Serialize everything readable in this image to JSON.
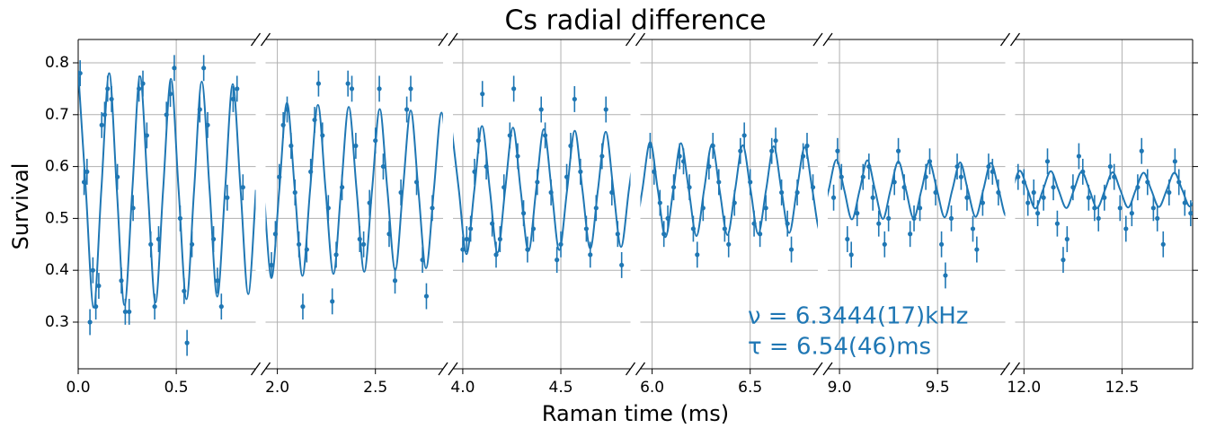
{
  "chart_data": {
    "type": "scatter",
    "title": "Cs radial difference",
    "xlabel": "Raman time (ms)",
    "ylabel": "Survival",
    "color": "#1f77b4",
    "grid": true,
    "ylim": [
      0.21,
      0.845
    ],
    "yticks": [
      0.3,
      0.4,
      0.5,
      0.6,
      0.7,
      0.8
    ],
    "error": 0.025,
    "annotations": [
      "ν = 6.3444(17)kHz",
      "τ = 6.54(46)ms"
    ],
    "panels": [
      {
        "xlim": [
          0,
          0.905
        ],
        "xticks": [
          {
            "value": 0,
            "label": "0.0"
          },
          0.5
        ],
        "x": [
          0.01,
          0.03,
          0.045,
          0.06,
          0.075,
          0.09,
          0.105,
          0.12,
          0.135,
          0.15,
          0.17,
          0.2,
          0.22,
          0.24,
          0.26,
          0.28,
          0.31,
          0.33,
          0.35,
          0.37,
          0.39,
          0.41,
          0.45,
          0.47,
          0.49,
          0.52,
          0.54,
          0.555,
          0.58,
          0.62,
          0.64,
          0.66,
          0.69,
          0.71,
          0.73,
          0.76,
          0.79,
          0.81,
          0.84
        ],
        "values": [
          0.78,
          0.57,
          0.59,
          0.3,
          0.4,
          0.33,
          0.37,
          0.68,
          0.7,
          0.75,
          0.73,
          0.58,
          0.38,
          0.32,
          0.32,
          0.52,
          0.75,
          0.76,
          0.66,
          0.45,
          0.33,
          0.46,
          0.7,
          0.74,
          0.79,
          0.5,
          0.36,
          0.26,
          0.45,
          0.71,
          0.79,
          0.68,
          0.46,
          0.38,
          0.33,
          0.54,
          0.73,
          0.75,
          0.56
        ],
        "fit_x": [
          0,
          0.039,
          0.079,
          0.118,
          0.158,
          0.197,
          0.236,
          0.276,
          0.315,
          0.355,
          0.394,
          0.433,
          0.473,
          0.512,
          0.552,
          0.591,
          0.63,
          0.67,
          0.709,
          0.749,
          0.788,
          0.828,
          0.867,
          0.906
        ],
        "fit_y": [
          0.785,
          0.555,
          0.328,
          0.555,
          0.78,
          0.555,
          0.333,
          0.555,
          0.774,
          0.555,
          0.338,
          0.555,
          0.769,
          0.555,
          0.344,
          0.555,
          0.764,
          0.555,
          0.349,
          0.555,
          0.759,
          0.555,
          0.354,
          0.555
        ]
      },
      {
        "xlim": [
          1.94,
          2.845
        ],
        "xticks": [
          {
            "value": 2,
            "label": "2.0"
          },
          2.5
        ],
        "x": [
          1.97,
          1.99,
          2.01,
          2.03,
          2.05,
          2.07,
          2.09,
          2.11,
          2.13,
          2.15,
          2.17,
          2.19,
          2.21,
          2.23,
          2.26,
          2.28,
          2.3,
          2.33,
          2.36,
          2.38,
          2.4,
          2.42,
          2.44,
          2.47,
          2.5,
          2.52,
          2.54,
          2.57,
          2.6,
          2.63,
          2.66,
          2.68,
          2.71,
          2.74,
          2.76,
          2.79
        ],
        "values": [
          0.41,
          0.47,
          0.58,
          0.68,
          0.71,
          0.64,
          0.55,
          0.45,
          0.33,
          0.44,
          0.59,
          0.69,
          0.76,
          0.66,
          0.52,
          0.34,
          0.43,
          0.56,
          0.76,
          0.75,
          0.64,
          0.46,
          0.45,
          0.53,
          0.65,
          0.75,
          0.6,
          0.47,
          0.38,
          0.55,
          0.71,
          0.75,
          0.57,
          0.42,
          0.35,
          0.52
        ],
        "fit_x": [
          1.931,
          1.97,
          2.01,
          2.049,
          2.089,
          2.128,
          2.167,
          2.207,
          2.246,
          2.286,
          2.325,
          2.364,
          2.404,
          2.443,
          2.483,
          2.522,
          2.561,
          2.601,
          2.64,
          2.68,
          2.719,
          2.758,
          2.798,
          2.837,
          2.877
        ],
        "fit_y": [
          0.555,
          0.385,
          0.555,
          0.723,
          0.555,
          0.389,
          0.555,
          0.719,
          0.555,
          0.393,
          0.555,
          0.715,
          0.555,
          0.397,
          0.555,
          0.711,
          0.555,
          0.4,
          0.555,
          0.708,
          0.555,
          0.404,
          0.555,
          0.704,
          0.555
        ]
      },
      {
        "xlim": [
          3.95,
          4.855
        ],
        "xticks": [
          {
            "value": 4,
            "label": "4.0"
          },
          4.5
        ],
        "x": [
          4.0,
          4.02,
          4.04,
          4.06,
          4.08,
          4.1,
          4.12,
          4.15,
          4.17,
          4.19,
          4.21,
          4.24,
          4.26,
          4.28,
          4.31,
          4.33,
          4.36,
          4.38,
          4.4,
          4.42,
          4.45,
          4.48,
          4.5,
          4.53,
          4.55,
          4.57,
          4.6,
          4.63,
          4.65,
          4.68,
          4.71,
          4.73,
          4.76,
          4.79,
          4.81
        ],
        "values": [
          0.44,
          0.46,
          0.48,
          0.59,
          0.65,
          0.74,
          0.6,
          0.49,
          0.43,
          0.46,
          0.56,
          0.66,
          0.75,
          0.62,
          0.51,
          0.44,
          0.48,
          0.57,
          0.71,
          0.66,
          0.55,
          0.42,
          0.45,
          0.58,
          0.64,
          0.73,
          0.59,
          0.48,
          0.43,
          0.52,
          0.62,
          0.71,
          0.55,
          0.47,
          0.41
        ],
        "fit_x": [
          3.941,
          3.98,
          4.019,
          4.059,
          4.098,
          4.138,
          4.177,
          4.216,
          4.256,
          4.295,
          4.335,
          4.374,
          4.413,
          4.453,
          4.492,
          4.532,
          4.571,
          4.61,
          4.65,
          4.689,
          4.729,
          4.768,
          4.807,
          4.847,
          4.886
        ],
        "fit_y": [
          0.681,
          0.555,
          0.431,
          0.555,
          0.678,
          0.555,
          0.434,
          0.555,
          0.675,
          0.555,
          0.437,
          0.555,
          0.672,
          0.555,
          0.439,
          0.555,
          0.669,
          0.555,
          0.442,
          0.555,
          0.667,
          0.555,
          0.445,
          0.555,
          0.664
        ]
      },
      {
        "xlim": [
          5.94,
          6.845
        ],
        "xticks": [
          {
            "value": 6,
            "label": "6.0"
          },
          6.5
        ],
        "x": [
          5.99,
          6.01,
          6.04,
          6.06,
          6.08,
          6.11,
          6.14,
          6.16,
          6.19,
          6.21,
          6.23,
          6.26,
          6.29,
          6.31,
          6.34,
          6.37,
          6.39,
          6.42,
          6.45,
          6.47,
          6.5,
          6.52,
          6.55,
          6.58,
          6.61,
          6.63,
          6.66,
          6.69,
          6.71,
          6.74,
          6.77,
          6.79,
          6.82
        ],
        "values": [
          0.64,
          0.59,
          0.53,
          0.47,
          0.5,
          0.56,
          0.62,
          0.61,
          0.56,
          0.48,
          0.43,
          0.52,
          0.6,
          0.64,
          0.57,
          0.48,
          0.45,
          0.53,
          0.63,
          0.66,
          0.57,
          0.49,
          0.47,
          0.52,
          0.63,
          0.65,
          0.55,
          0.49,
          0.44,
          0.55,
          0.62,
          0.64,
          0.56
        ],
        "fit_x": [
          5.911,
          5.95,
          5.99,
          6.029,
          6.068,
          6.108,
          6.147,
          6.187,
          6.226,
          6.265,
          6.305,
          6.344,
          6.384,
          6.423,
          6.462,
          6.502,
          6.541,
          6.581,
          6.62,
          6.659,
          6.699,
          6.738,
          6.778,
          6.817,
          6.857,
          6.896
        ],
        "fit_y": [
          0.462,
          0.555,
          0.647,
          0.555,
          0.464,
          0.555,
          0.645,
          0.555,
          0.466,
          0.555,
          0.643,
          0.555,
          0.468,
          0.555,
          0.641,
          0.555,
          0.47,
          0.555,
          0.639,
          0.555,
          0.472,
          0.555,
          0.637,
          0.555,
          0.474,
          0.555
        ]
      },
      {
        "xlim": [
          8.94,
          9.845
        ],
        "xticks": [
          {
            "value": 9,
            "label": "9.0"
          },
          9.5
        ],
        "x": [
          8.97,
          8.99,
          9.01,
          9.04,
          9.06,
          9.09,
          9.12,
          9.15,
          9.17,
          9.2,
          9.23,
          9.25,
          9.28,
          9.3,
          9.33,
          9.36,
          9.38,
          9.41,
          9.44,
          9.46,
          9.49,
          9.52,
          9.54,
          9.57,
          9.6,
          9.62,
          9.65,
          9.68,
          9.7,
          9.73,
          9.76,
          9.78,
          9.81
        ],
        "values": [
          0.54,
          0.63,
          0.58,
          0.46,
          0.43,
          0.51,
          0.58,
          0.6,
          0.54,
          0.49,
          0.45,
          0.5,
          0.57,
          0.63,
          0.56,
          0.47,
          0.5,
          0.52,
          0.58,
          0.61,
          0.55,
          0.45,
          0.39,
          0.5,
          0.6,
          0.58,
          0.54,
          0.48,
          0.44,
          0.53,
          0.6,
          0.59,
          0.55
        ],
        "fit_x": [
          8.906,
          8.945,
          8.984,
          9.024,
          9.063,
          9.103,
          9.142,
          9.181,
          9.221,
          9.26,
          9.3,
          9.339,
          9.378,
          9.418,
          9.457,
          9.497,
          9.536,
          9.575,
          9.615,
          9.654,
          9.694,
          9.733,
          9.772,
          9.812,
          9.851,
          9.891
        ],
        "fit_y": [
          0.496,
          0.555,
          0.613,
          0.555,
          0.498,
          0.555,
          0.612,
          0.555,
          0.499,
          0.555,
          0.61,
          0.555,
          0.5,
          0.555,
          0.609,
          0.555,
          0.502,
          0.555,
          0.608,
          0.555,
          0.503,
          0.555,
          0.607,
          0.555,
          0.504,
          0.555
        ]
      },
      {
        "xlim": [
          11.955,
          12.86
        ],
        "xticks": [
          {
            "value": 12,
            "label": "12.0"
          },
          12.5
        ],
        "x": [
          11.97,
          12.0,
          12.02,
          12.05,
          12.07,
          12.1,
          12.12,
          12.15,
          12.17,
          12.2,
          12.22,
          12.25,
          12.28,
          12.3,
          12.33,
          12.36,
          12.38,
          12.41,
          12.44,
          12.46,
          12.49,
          12.52,
          12.55,
          12.58,
          12.6,
          12.63,
          12.66,
          12.68,
          12.71,
          12.74,
          12.77,
          12.79,
          12.82,
          12.85
        ],
        "values": [
          0.58,
          0.57,
          0.53,
          0.55,
          0.51,
          0.54,
          0.61,
          0.56,
          0.49,
          0.42,
          0.46,
          0.56,
          0.62,
          0.59,
          0.54,
          0.52,
          0.5,
          0.54,
          0.6,
          0.58,
          0.52,
          0.48,
          0.51,
          0.56,
          0.63,
          0.57,
          0.52,
          0.5,
          0.45,
          0.55,
          0.61,
          0.57,
          0.53,
          0.51
        ],
        "fit_x": [
          11.9,
          11.94,
          11.979,
          12.019,
          12.058,
          12.097,
          12.137,
          12.176,
          12.216,
          12.255,
          12.294,
          12.334,
          12.373,
          12.413,
          12.452,
          12.491,
          12.531,
          12.57,
          12.61,
          12.649,
          12.688,
          12.728,
          12.767,
          12.807,
          12.846,
          12.885
        ],
        "fit_y": [
          0.518,
          0.555,
          0.592,
          0.555,
          0.519,
          0.555,
          0.591,
          0.555,
          0.52,
          0.555,
          0.59,
          0.555,
          0.52,
          0.555,
          0.589,
          0.555,
          0.521,
          0.555,
          0.588,
          0.555,
          0.522,
          0.555,
          0.588,
          0.555,
          0.523,
          0.555
        ]
      }
    ]
  }
}
